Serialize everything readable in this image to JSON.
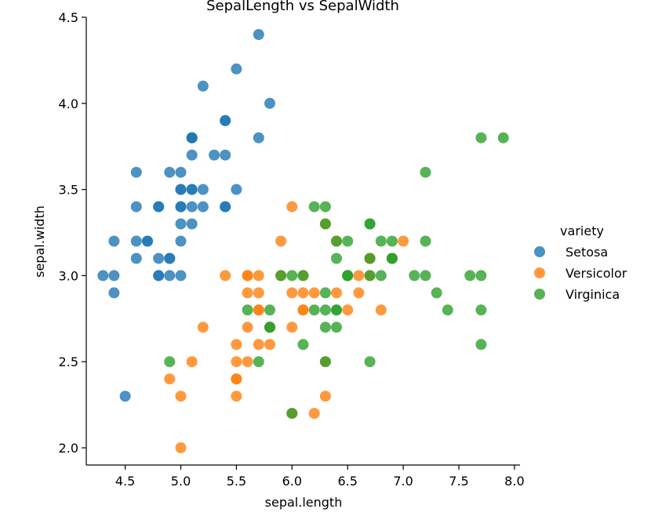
{
  "chart_data": {
    "type": "scatter",
    "title": "SepalLength vs SepalWidth",
    "xlabel": "sepal.length",
    "ylabel": "sepal.width",
    "xlim": [
      4.15,
      8.05
    ],
    "ylim": [
      1.9,
      4.5
    ],
    "xticks": [
      {
        "value": 4.5,
        "label": "4.5"
      },
      {
        "value": 5.0,
        "label": "5.0"
      },
      {
        "value": 5.5,
        "label": "5.5"
      },
      {
        "value": 6.0,
        "label": "6.0"
      },
      {
        "value": 6.5,
        "label": "6.5"
      },
      {
        "value": 7.0,
        "label": "7.0"
      },
      {
        "value": 7.5,
        "label": "7.5"
      },
      {
        "value": 8.0,
        "label": "8.0"
      }
    ],
    "yticks": [
      {
        "value": 2.0,
        "label": "2.0"
      },
      {
        "value": 2.5,
        "label": "2.5"
      },
      {
        "value": 3.0,
        "label": "3.0"
      },
      {
        "value": 3.5,
        "label": "3.5"
      },
      {
        "value": 4.0,
        "label": "4.0"
      },
      {
        "value": 4.5,
        "label": "4.5"
      }
    ],
    "grid": false,
    "legend": {
      "title": "variety",
      "position": "right"
    },
    "series": [
      {
        "name": "Setosa",
        "color": "#1f77b4",
        "points": [
          [
            5.1,
            3.5
          ],
          [
            4.9,
            3.0
          ],
          [
            4.7,
            3.2
          ],
          [
            4.6,
            3.1
          ],
          [
            5.0,
            3.6
          ],
          [
            5.4,
            3.9
          ],
          [
            4.6,
            3.4
          ],
          [
            5.0,
            3.4
          ],
          [
            4.4,
            2.9
          ],
          [
            4.9,
            3.1
          ],
          [
            5.4,
            3.7
          ],
          [
            4.8,
            3.4
          ],
          [
            4.8,
            3.0
          ],
          [
            4.3,
            3.0
          ],
          [
            5.8,
            4.0
          ],
          [
            5.7,
            4.4
          ],
          [
            5.4,
            3.9
          ],
          [
            5.1,
            3.5
          ],
          [
            5.7,
            3.8
          ],
          [
            5.1,
            3.8
          ],
          [
            5.4,
            3.4
          ],
          [
            5.1,
            3.7
          ],
          [
            4.6,
            3.6
          ],
          [
            5.1,
            3.3
          ],
          [
            4.8,
            3.4
          ],
          [
            5.0,
            3.0
          ],
          [
            5.0,
            3.4
          ],
          [
            5.2,
            3.5
          ],
          [
            5.2,
            3.4
          ],
          [
            4.7,
            3.2
          ],
          [
            4.8,
            3.1
          ],
          [
            5.4,
            3.4
          ],
          [
            5.2,
            4.1
          ],
          [
            5.5,
            4.2
          ],
          [
            4.9,
            3.1
          ],
          [
            5.0,
            3.2
          ],
          [
            5.5,
            3.5
          ],
          [
            4.9,
            3.6
          ],
          [
            4.4,
            3.0
          ],
          [
            5.1,
            3.4
          ],
          [
            5.0,
            3.5
          ],
          [
            4.5,
            2.3
          ],
          [
            4.4,
            3.2
          ],
          [
            5.0,
            3.5
          ],
          [
            5.1,
            3.8
          ],
          [
            4.8,
            3.0
          ],
          [
            5.1,
            3.8
          ],
          [
            4.6,
            3.2
          ],
          [
            5.3,
            3.7
          ],
          [
            5.0,
            3.3
          ]
        ]
      },
      {
        "name": "Versicolor",
        "color": "#ff7f0e",
        "points": [
          [
            7.0,
            3.2
          ],
          [
            6.4,
            3.2
          ],
          [
            6.9,
            3.1
          ],
          [
            5.5,
            2.3
          ],
          [
            6.5,
            2.8
          ],
          [
            5.7,
            2.8
          ],
          [
            6.3,
            3.3
          ],
          [
            4.9,
            2.4
          ],
          [
            6.6,
            2.9
          ],
          [
            5.2,
            2.7
          ],
          [
            5.0,
            2.0
          ],
          [
            5.9,
            3.0
          ],
          [
            6.0,
            2.2
          ],
          [
            6.1,
            2.9
          ],
          [
            5.6,
            2.9
          ],
          [
            6.7,
            3.1
          ],
          [
            5.6,
            3.0
          ],
          [
            5.8,
            2.7
          ],
          [
            6.2,
            2.2
          ],
          [
            5.6,
            2.5
          ],
          [
            5.9,
            3.2
          ],
          [
            6.1,
            2.8
          ],
          [
            6.3,
            2.5
          ],
          [
            6.1,
            2.8
          ],
          [
            6.4,
            2.9
          ],
          [
            6.6,
            3.0
          ],
          [
            6.8,
            2.8
          ],
          [
            6.7,
            3.0
          ],
          [
            6.0,
            2.9
          ],
          [
            5.7,
            2.6
          ],
          [
            5.5,
            2.4
          ],
          [
            5.5,
            2.4
          ],
          [
            5.8,
            2.7
          ],
          [
            6.0,
            2.7
          ],
          [
            5.4,
            3.0
          ],
          [
            6.0,
            3.4
          ],
          [
            6.7,
            3.1
          ],
          [
            6.3,
            2.3
          ],
          [
            5.6,
            3.0
          ],
          [
            5.5,
            2.5
          ],
          [
            5.5,
            2.6
          ],
          [
            6.1,
            3.0
          ],
          [
            5.8,
            2.6
          ],
          [
            5.0,
            2.3
          ],
          [
            5.6,
            2.7
          ],
          [
            5.7,
            3.0
          ],
          [
            5.7,
            2.9
          ],
          [
            6.2,
            2.9
          ],
          [
            5.1,
            2.5
          ],
          [
            5.7,
            2.8
          ]
        ]
      },
      {
        "name": "Virginica",
        "color": "#2ca02c",
        "points": [
          [
            6.3,
            3.3
          ],
          [
            5.8,
            2.7
          ],
          [
            7.1,
            3.0
          ],
          [
            6.3,
            2.9
          ],
          [
            6.5,
            3.0
          ],
          [
            7.6,
            3.0
          ],
          [
            4.9,
            2.5
          ],
          [
            7.3,
            2.9
          ],
          [
            6.7,
            2.5
          ],
          [
            7.2,
            3.6
          ],
          [
            6.5,
            3.2
          ],
          [
            6.4,
            2.7
          ],
          [
            6.8,
            3.0
          ],
          [
            5.7,
            2.5
          ],
          [
            5.8,
            2.8
          ],
          [
            6.4,
            3.2
          ],
          [
            6.5,
            3.0
          ],
          [
            7.7,
            3.8
          ],
          [
            7.7,
            2.6
          ],
          [
            6.0,
            2.2
          ],
          [
            6.9,
            3.2
          ],
          [
            5.6,
            2.8
          ],
          [
            7.7,
            2.8
          ],
          [
            6.3,
            2.7
          ],
          [
            6.7,
            3.3
          ],
          [
            7.2,
            3.2
          ],
          [
            6.2,
            2.8
          ],
          [
            6.1,
            3.0
          ],
          [
            6.4,
            2.8
          ],
          [
            7.2,
            3.0
          ],
          [
            7.4,
            2.8
          ],
          [
            7.9,
            3.8
          ],
          [
            6.4,
            2.8
          ],
          [
            6.3,
            2.8
          ],
          [
            6.1,
            2.6
          ],
          [
            7.7,
            3.0
          ],
          [
            6.3,
            3.4
          ],
          [
            6.4,
            3.1
          ],
          [
            6.0,
            3.0
          ],
          [
            6.9,
            3.1
          ],
          [
            6.7,
            3.1
          ],
          [
            6.9,
            3.1
          ],
          [
            5.8,
            2.7
          ],
          [
            6.8,
            3.2
          ],
          [
            6.7,
            3.3
          ],
          [
            6.7,
            3.0
          ],
          [
            6.3,
            2.5
          ],
          [
            6.5,
            3.0
          ],
          [
            6.2,
            3.4
          ],
          [
            5.9,
            3.0
          ]
        ]
      }
    ]
  }
}
